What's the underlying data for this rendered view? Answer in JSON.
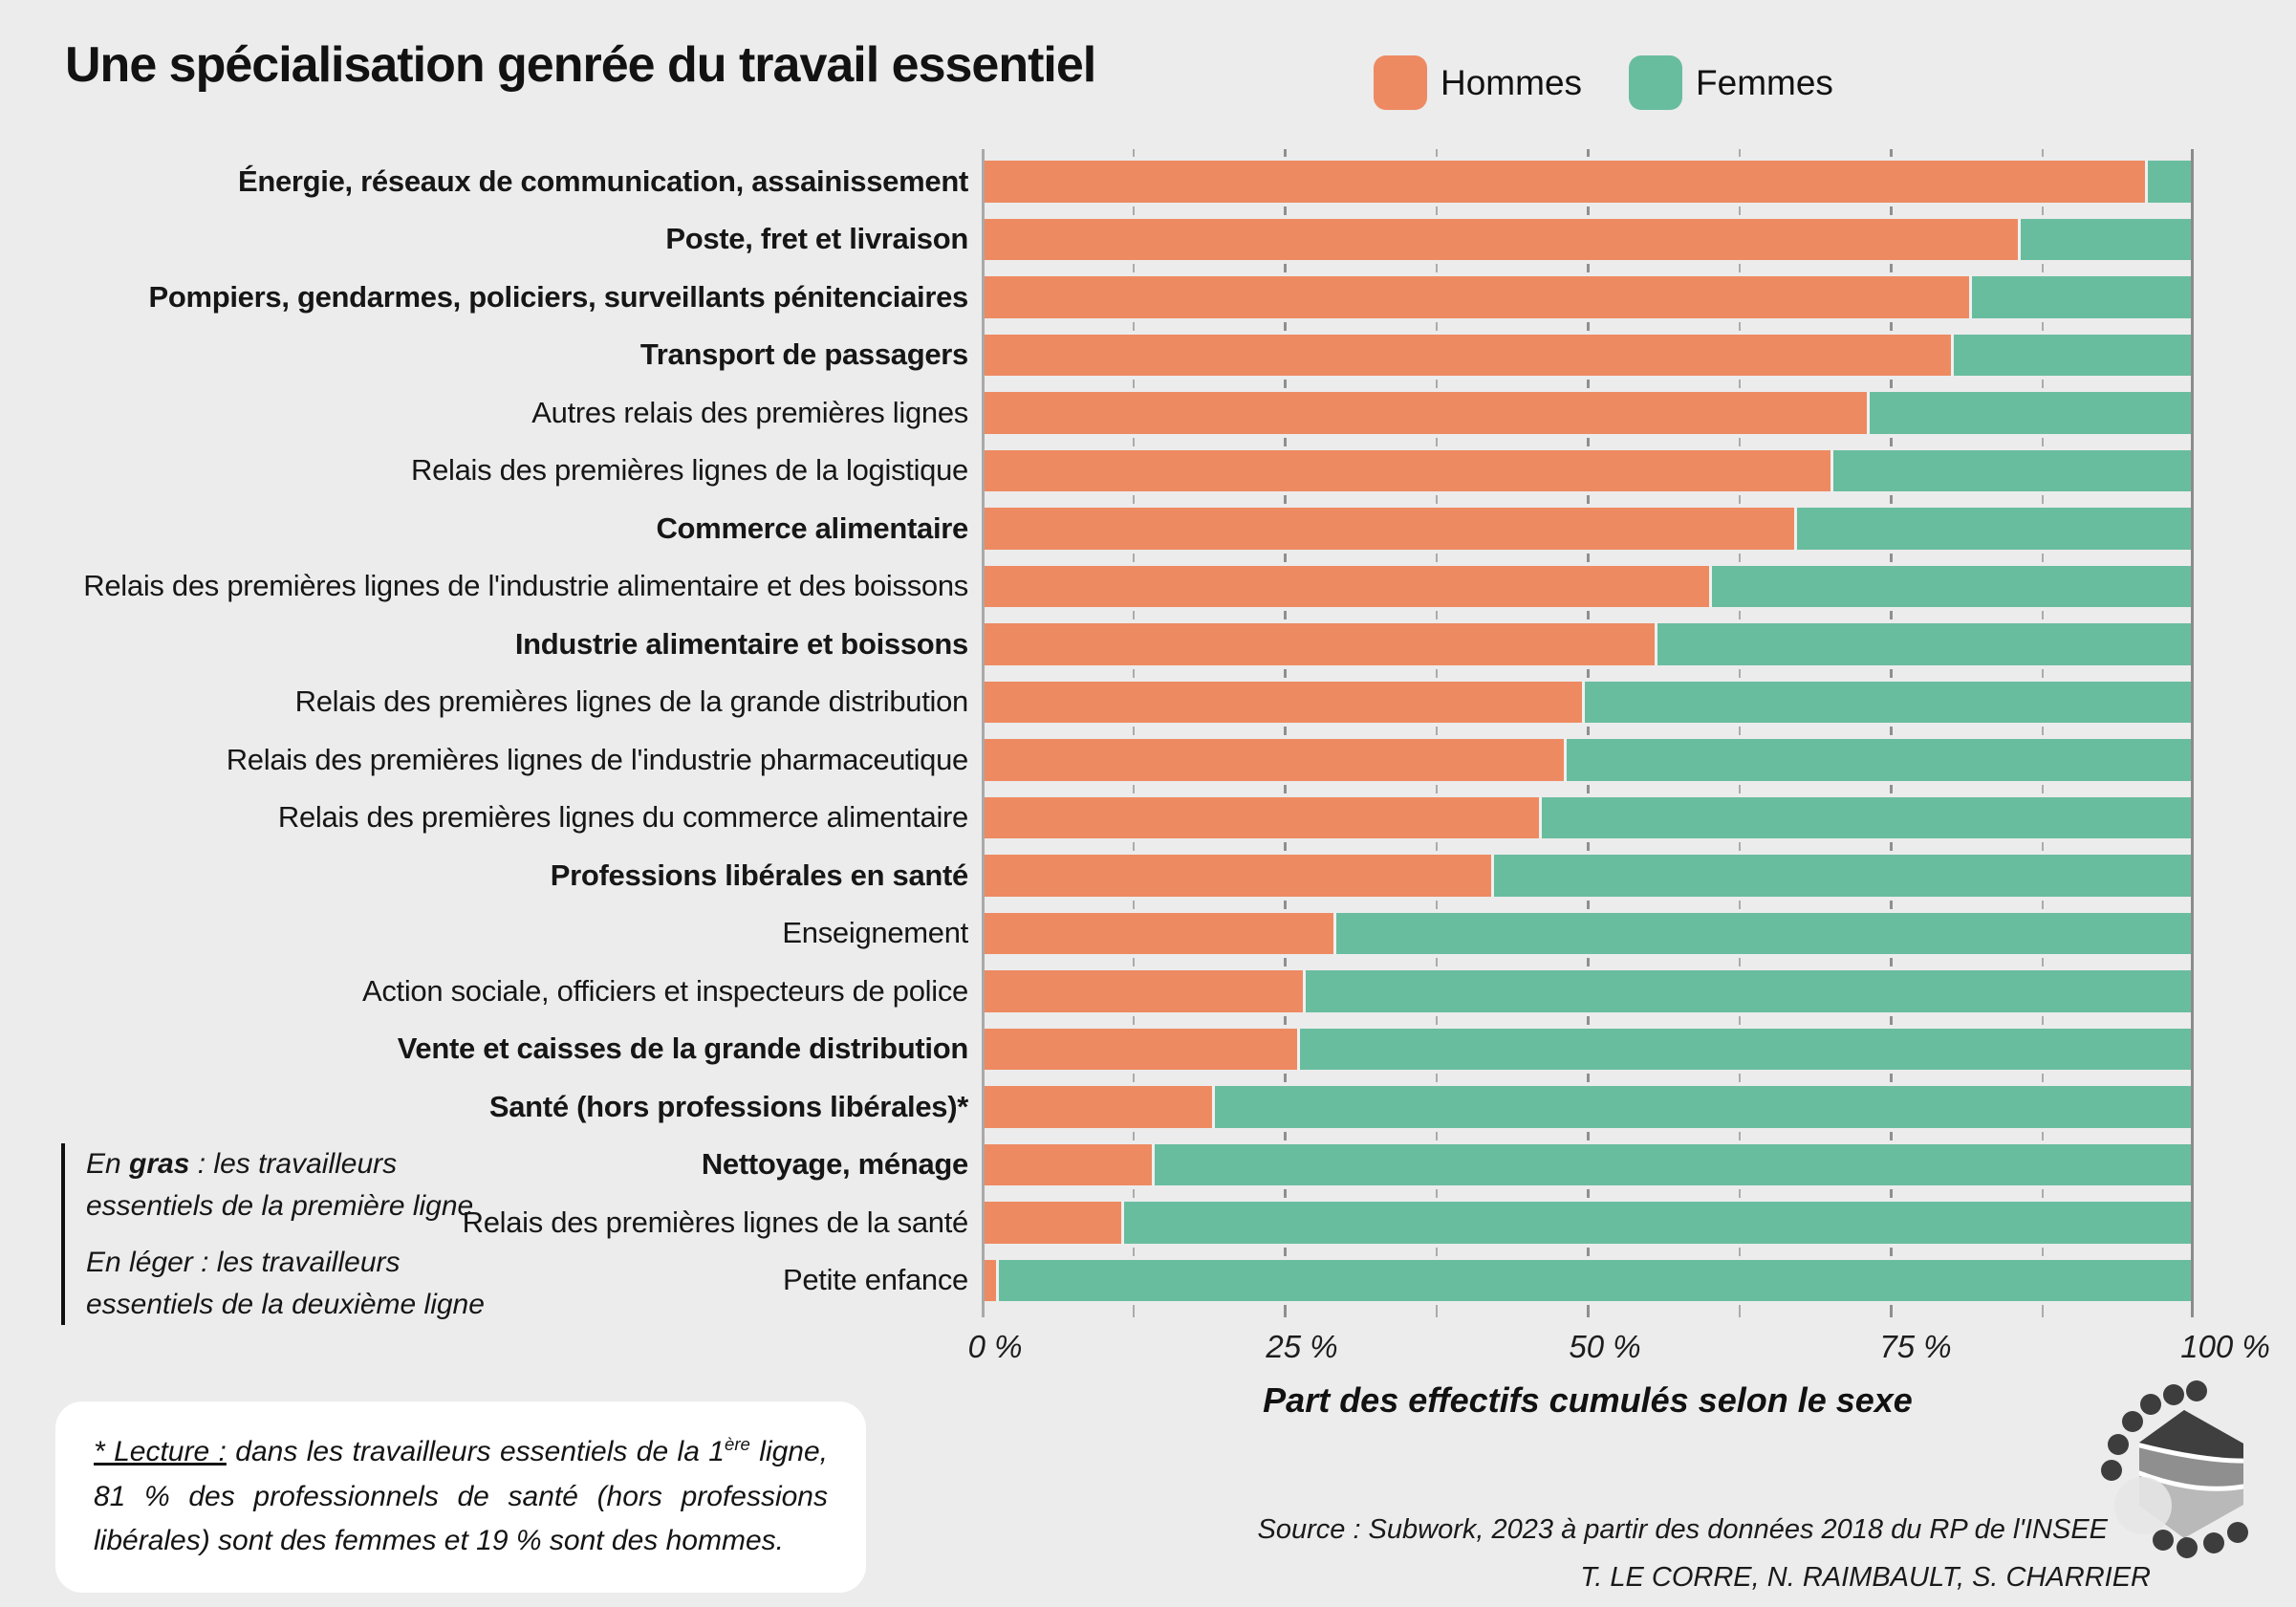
{
  "title": "Une spécialisation genrée du travail essentiel",
  "legend": {
    "items": [
      {
        "label": "Hommes",
        "color": "#EE8A62"
      },
      {
        "label": "Femmes",
        "color": "#69BD9F"
      }
    ]
  },
  "chart_data": {
    "type": "bar",
    "stacked": true,
    "orientation": "horizontal",
    "unit": "%",
    "title": "Une spécialisation genrée du travail essentiel",
    "xlabel": "Part des effectifs cumulés selon le sexe",
    "xlim": [
      0,
      100
    ],
    "grid": true,
    "gridlines_percent": [
      12.5,
      25,
      37.5,
      50,
      62.5,
      75,
      87.5
    ],
    "x_ticks": [
      {
        "label": "0 %",
        "value": 0
      },
      {
        "label": "25 %",
        "value": 25
      },
      {
        "label": "50 %",
        "value": 50
      },
      {
        "label": "75 %",
        "value": 75
      },
      {
        "label": "100 %",
        "value": 100
      }
    ],
    "series_names": [
      "Hommes",
      "Femmes"
    ],
    "categories": [
      {
        "label": "Énergie, réseaux de communication, assainissement",
        "first_line": true,
        "hommes": 96,
        "femmes": 4
      },
      {
        "label": "Poste, fret et livraison",
        "first_line": true,
        "hommes": 85.5,
        "femmes": 14.5
      },
      {
        "label": "Pompiers, gendarmes, policiers, surveillants pénitenciaires",
        "first_line": true,
        "hommes": 81.5,
        "femmes": 18.5
      },
      {
        "label": "Transport de passagers",
        "first_line": true,
        "hommes": 80,
        "femmes": 20
      },
      {
        "label": "Autres relais des premières lignes",
        "first_line": false,
        "hommes": 73,
        "femmes": 27
      },
      {
        "label": "Relais des premières lignes de la logistique",
        "first_line": false,
        "hommes": 70,
        "femmes": 30
      },
      {
        "label": "Commerce alimentaire",
        "first_line": true,
        "hommes": 67,
        "femmes": 33
      },
      {
        "label": "Relais des premières lignes de l'industrie alimentaire et des boissons",
        "first_line": false,
        "hommes": 60,
        "femmes": 40
      },
      {
        "label": "Industrie alimentaire et boissons",
        "first_line": true,
        "hommes": 55.5,
        "femmes": 44.5
      },
      {
        "label": "Relais des premières lignes de la grande distribution",
        "first_line": false,
        "hommes": 49.5,
        "femmes": 50.5
      },
      {
        "label": "Relais des premières lignes de l'industrie pharmaceutique",
        "first_line": false,
        "hommes": 48,
        "femmes": 52
      },
      {
        "label": "Relais des premières lignes du commerce alimentaire",
        "first_line": false,
        "hommes": 46,
        "femmes": 54
      },
      {
        "label": "Professions libérales en santé",
        "first_line": true,
        "hommes": 42,
        "femmes": 58
      },
      {
        "label": "Enseignement",
        "first_line": false,
        "hommes": 29,
        "femmes": 71
      },
      {
        "label": "Action sociale, officiers et inspecteurs de police",
        "first_line": false,
        "hommes": 26.5,
        "femmes": 73.5
      },
      {
        "label": "Vente et caisses de la grande distribution",
        "first_line": true,
        "hommes": 26,
        "femmes": 74
      },
      {
        "label": "Santé (hors professions libérales)*",
        "first_line": true,
        "hommes": 19,
        "femmes": 81
      },
      {
        "label": "Nettoyage, ménage",
        "first_line": true,
        "hommes": 14,
        "femmes": 86
      },
      {
        "label": "Relais des premières lignes de la santé",
        "first_line": false,
        "hommes": 11.5,
        "femmes": 88.5
      },
      {
        "label": "Petite enfance",
        "first_line": false,
        "hommes": 1.2,
        "femmes": 98.8
      }
    ]
  },
  "annotation": {
    "line1_prefix": "En ",
    "line1_bold": "gras",
    "line1_rest": " : les travailleurs essentiels de la première ligne",
    "line2_prefix": "En léger",
    "line2_rest": " : les travailleurs essentiels de la deuxième ligne"
  },
  "footnote": {
    "label": "* Lecture :",
    "part1": " dans les travailleurs essentiels de la 1",
    "sup": "ère",
    "part2": " ligne, 81 % des professionnels de santé (hors professions libérales) sont des femmes et 19 % sont des hommes."
  },
  "source": {
    "line1": "Source : Subwork, 2023 à partir des données 2018 du RP de l'INSEE",
    "line2": "T. LE CORRE, N. RAIMBAULT, S. CHARRIER"
  }
}
